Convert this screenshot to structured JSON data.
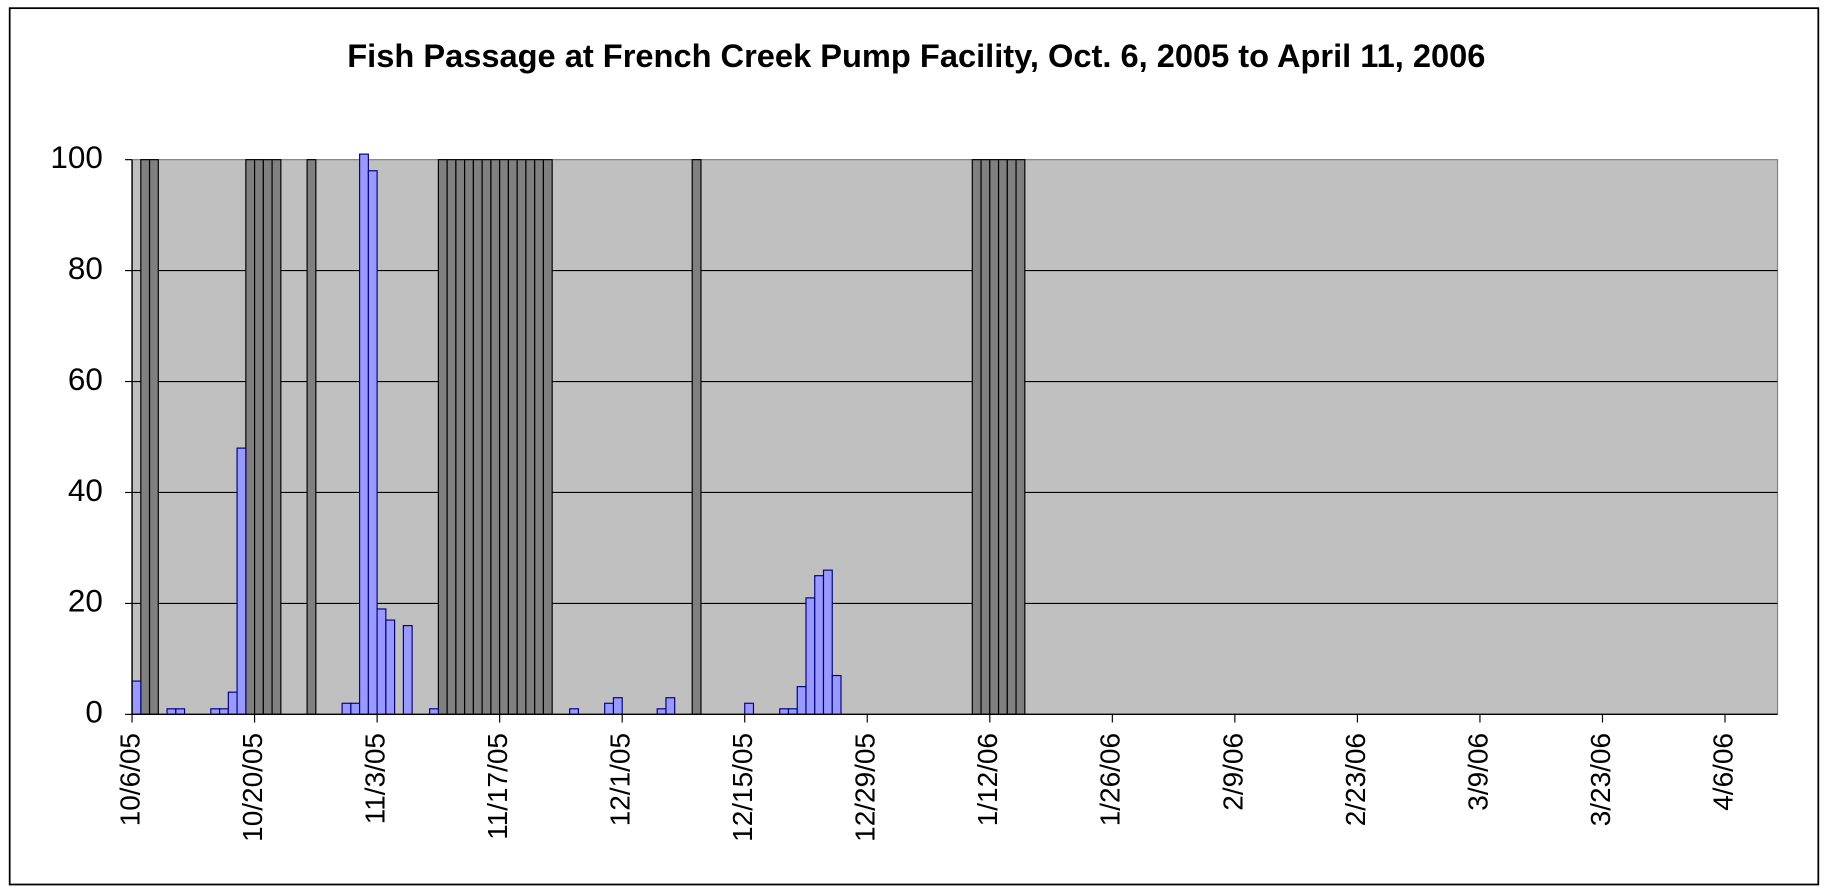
{
  "chart_data": {
    "type": "bar",
    "title": "Fish Passage at French Creek Pump Facility, Oct. 6, 2005 to April 11, 2006",
    "series": [
      {
        "color": "#808080",
        "x": [
          "10/7/05",
          "10/8/05",
          "10/19/05",
          "10/20/05",
          "10/21/05",
          "10/22/05",
          "10/26/05",
          "11/10/05",
          "11/11/05",
          "11/12/05",
          "11/13/05",
          "11/14/05",
          "11/15/05",
          "11/16/05",
          "11/17/05",
          "11/18/05",
          "11/19/05",
          "11/20/05",
          "11/21/05",
          "11/22/05",
          "12/9/05",
          "1/10/06",
          "1/11/06",
          "1/12/06",
          "1/13/06",
          "1/14/06",
          "1/15/06"
        ],
        "values": [
          100,
          100,
          100,
          100,
          100,
          100,
          100,
          100,
          100,
          100,
          100,
          100,
          100,
          100,
          100,
          100,
          100,
          100,
          100,
          100,
          100,
          100,
          100,
          100,
          100,
          100,
          100
        ]
      },
      {
        "color": "#9999ff",
        "x": [
          "10/6/05",
          "10/10/05",
          "10/11/05",
          "10/15/05",
          "10/16/05",
          "10/17/05",
          "10/18/05",
          "10/30/05",
          "10/31/05",
          "11/1/05",
          "11/2/05",
          "11/3/05",
          "11/4/05",
          "11/6/05",
          "11/9/05",
          "11/25/05",
          "11/29/05",
          "11/30/05",
          "12/5/05",
          "12/6/05",
          "12/15/05",
          "12/19/05",
          "12/20/05",
          "12/21/05",
          "12/22/05",
          "12/23/05",
          "12/24/05",
          "12/25/05"
        ],
        "values": [
          6,
          1,
          1,
          1,
          1,
          4,
          48,
          2,
          2,
          101,
          98,
          19,
          17,
          16,
          1,
          1,
          2,
          3,
          1,
          3,
          2,
          1,
          1,
          5,
          21,
          25,
          26,
          7
        ]
      }
    ],
    "xlim": [
      "10/6/05",
      "4/12/06"
    ],
    "xticks": [
      "10/6/05",
      "10/20/05",
      "11/3/05",
      "11/17/05",
      "12/1/05",
      "12/15/05",
      "12/29/05",
      "1/12/06",
      "1/26/06",
      "2/9/06",
      "2/23/06",
      "3/9/06",
      "3/23/06",
      "4/6/06"
    ],
    "ylim": [
      0,
      100
    ],
    "yticks": [
      0,
      20,
      40,
      60,
      80,
      100
    ],
    "grid": true
  }
}
